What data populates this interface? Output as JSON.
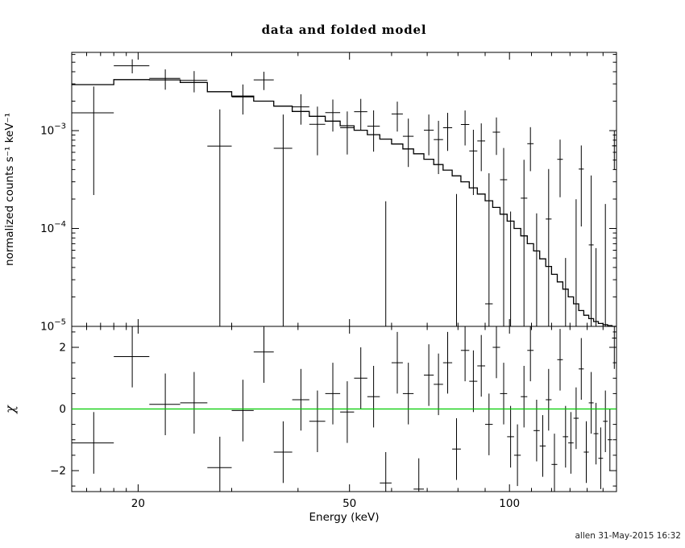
{
  "title": "data and folded model",
  "footer": "allen 31-May-2015 16:32",
  "chart_data": {
    "type": "scatter",
    "description": "X-ray spectrum: data with error bars and folded model histogram (top, log-log), chi residuals with green zero line (bottom)",
    "title": "data and folded model",
    "xlabel": "Energy (keV)",
    "x_scale": "log",
    "x_range": [
      15,
      159
    ],
    "x_major_ticks": [
      20,
      50,
      100
    ],
    "x_minor_ticks": [
      16,
      17,
      18,
      19,
      30,
      40,
      60,
      70,
      80,
      90,
      110,
      120,
      130,
      140,
      150
    ],
    "spectrum_point_format": [
      "energy_keV",
      "rate_counts_s_keV",
      "error"
    ],
    "residual_point_format": [
      "energy_keV",
      "chi"
    ],
    "panels": [
      {
        "name": "spectrum",
        "ylabel": "normalized counts s⁻¹ keV⁻¹",
        "y_scale": "log",
        "y_range": [
          1e-05,
          0.0063
        ],
        "y_major_ticks": [
          0.001,
          0.0001,
          1e-05
        ],
        "bin_half_width": 1.5,
        "model": {
          "e_lo": 15,
          "bin_width": 3,
          "values": [
            0.00295,
            0.00332,
            0.0033,
            0.0031,
            0.0025,
            0.00225,
            0.002,
            0.00178,
            0.00157,
            0.0014,
            0.00125,
            0.00112,
            0.00101,
            0.00091,
            0.00082,
            0.00073,
            0.00065,
            0.00058,
            0.00051,
            0.00045,
            0.000395,
            0.000345,
            0.0003,
            0.00026,
            0.000225,
            0.000192,
            0.000164,
            0.00014,
            0.000119,
            0.0001,
            8.4e-05,
            7e-05,
            5.9e-05,
            4.9e-05,
            4.1e-05,
            3.4e-05,
            2.85e-05,
            2.4e-05,
            2e-05,
            1.7e-05,
            1.45e-05,
            1.3e-05,
            1.2e-05,
            1.12e-05,
            1.07e-05,
            1.04e-05,
            1.02e-05,
            1e-05
          ]
        },
        "points": [
          [
            16.5,
            0.00152,
            0.0013
          ],
          [
            19.5,
            0.0046,
            0.00075
          ],
          [
            22.5,
            0.00342,
            0.0008
          ],
          [
            25.5,
            0.00326,
            0.0008
          ],
          [
            28.5,
            0.000695,
            0.00095
          ],
          [
            31.5,
            0.00221,
            0.00075
          ],
          [
            34.5,
            0.0033,
            0.0007
          ],
          [
            37.5,
            0.00066,
            0.0008
          ],
          [
            40.5,
            0.00175,
            0.0006
          ],
          [
            43.5,
            0.00116,
            0.0006
          ],
          [
            46.5,
            0.00153,
            0.00055
          ],
          [
            49.5,
            0.00107,
            0.0005
          ],
          [
            52.5,
            0.00156,
            0.00055
          ],
          [
            55.5,
            0.00111,
            0.0005
          ],
          [
            58.5,
            -0.00026,
            0.00045
          ],
          [
            61.5,
            0.00148,
            0.0005
          ],
          [
            64.5,
            0.000875,
            0.00045
          ],
          [
            67.5,
            -0.00046,
            0.0004
          ],
          [
            70.5,
            0.00101,
            0.00045
          ],
          [
            73.5,
            0.00081,
            0.00045
          ],
          [
            76.5,
            0.00107,
            0.00045
          ],
          [
            79.5,
            -0.000175,
            0.0004
          ],
          [
            82.5,
            0.001155,
            0.00045
          ],
          [
            85.5,
            0.00062,
            0.0004
          ],
          [
            88.5,
            0.000785,
            0.0004
          ],
          [
            91.5,
            1.7e-05,
            0.00035
          ],
          [
            94.5,
            0.000964,
            0.0004
          ],
          [
            97.5,
            0.000315,
            0.00035
          ],
          [
            100.5,
            -0.000151,
            0.0003
          ],
          [
            103.5,
            -0.00035,
            0.0003
          ],
          [
            106.5,
            0.000204,
            0.0003
          ],
          [
            109.5,
            0.000735,
            0.00035
          ],
          [
            112.5,
            -0.000137,
            0.00028
          ],
          [
            115.5,
            -0.000287,
            0.00028
          ],
          [
            118.5,
            0.000125,
            0.00028
          ],
          [
            121.5,
            -0.000434,
            0.00026
          ],
          [
            124.5,
            0.000509,
            0.0003
          ],
          [
            127.5,
            -0.00021,
            0.00026
          ],
          [
            130.5,
            -0.000266,
            0.00026
          ],
          [
            133.5,
            -6.1e-05,
            0.00026
          ],
          [
            136.5,
            0.000405,
            0.0003
          ],
          [
            139.5,
            -0.000351,
            0.00026
          ],
          [
            142.5,
            6.8e-05,
            0.00028
          ],
          [
            145.5,
            -0.000197,
            0.00026
          ],
          [
            148.5,
            -0.000405,
            0.00026
          ],
          [
            151.5,
            -0.000102,
            0.00028
          ],
          [
            154.5,
            -0.00025,
            0.00026
          ],
          [
            157.5,
            0.0007,
            0.0003
          ]
        ]
      },
      {
        "name": "residuals",
        "ylabel": "χ",
        "y_scale": "linear",
        "y_range": [
          -2.68,
          2.68
        ],
        "y_major_ticks": [
          -2,
          0,
          2
        ],
        "chi_error": 1.0,
        "zero_line_color": "#00cc00",
        "points": [
          [
            16.5,
            -1.1
          ],
          [
            19.5,
            1.7
          ],
          [
            22.5,
            0.15
          ],
          [
            25.5,
            0.2
          ],
          [
            28.5,
            -1.9
          ],
          [
            31.5,
            -0.05
          ],
          [
            34.5,
            1.85
          ],
          [
            37.5,
            -1.4
          ],
          [
            40.5,
            0.3
          ],
          [
            43.5,
            -0.4
          ],
          [
            46.5,
            0.5
          ],
          [
            49.5,
            -0.1
          ],
          [
            52.5,
            1.0
          ],
          [
            55.5,
            0.4
          ],
          [
            58.5,
            -2.4
          ],
          [
            61.5,
            1.5
          ],
          [
            64.5,
            0.5
          ],
          [
            67.5,
            -2.6
          ],
          [
            70.5,
            1.1
          ],
          [
            73.5,
            0.8
          ],
          [
            76.5,
            1.5
          ],
          [
            79.5,
            -1.3
          ],
          [
            82.5,
            1.9
          ],
          [
            85.5,
            0.9
          ],
          [
            88.5,
            1.4
          ],
          [
            91.5,
            -0.5
          ],
          [
            94.5,
            2.0
          ],
          [
            97.5,
            0.5
          ],
          [
            100.5,
            -0.9
          ],
          [
            103.5,
            -1.5
          ],
          [
            106.5,
            0.4
          ],
          [
            109.5,
            1.9
          ],
          [
            112.5,
            -0.7
          ],
          [
            115.5,
            -1.2
          ],
          [
            118.5,
            0.3
          ],
          [
            121.5,
            -1.8
          ],
          [
            124.5,
            1.6
          ],
          [
            127.5,
            -0.9
          ],
          [
            130.5,
            -1.1
          ],
          [
            133.5,
            -0.3
          ],
          [
            136.5,
            1.3
          ],
          [
            139.5,
            -1.4
          ],
          [
            142.5,
            0.2
          ],
          [
            145.5,
            -0.8
          ],
          [
            148.5,
            -1.6
          ],
          [
            151.5,
            -0.4
          ],
          [
            154.5,
            -1.0
          ],
          [
            157.5,
            2.3
          ]
        ]
      }
    ]
  }
}
